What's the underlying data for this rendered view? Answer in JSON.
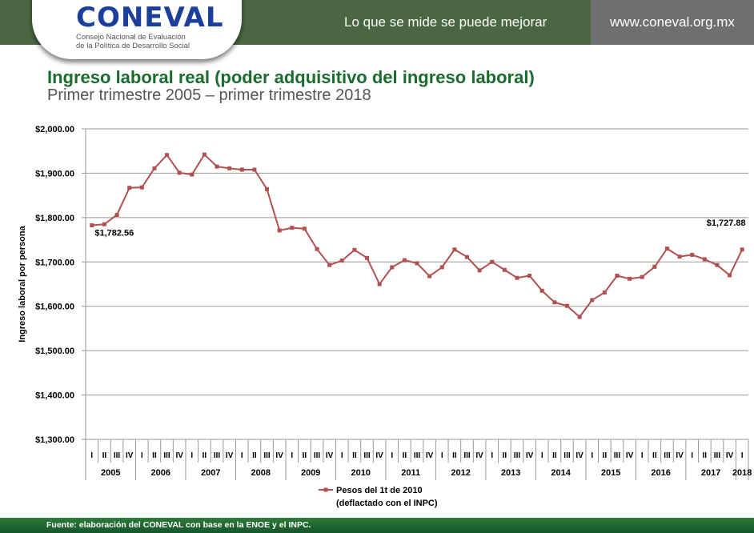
{
  "header": {
    "logo_text": "CONEVAL",
    "logo_subtitle_1": "Consejo Nacional de Evaluación",
    "logo_subtitle_2": "de la Política de Desarrollo Social",
    "slogan": "Lo que se mide se puede mejorar",
    "url": "www.coneval.org.mx",
    "band_color": "#4a6741"
  },
  "title": "Ingreso laboral real (poder adquisitivo del ingreso laboral)",
  "subtitle": "Primer trimestre 2005 – primer trimestre 2018",
  "footer": "Fuente: elaboración del CONEVAL con base en la ENOE y el INPC.",
  "chart_data": {
    "type": "line",
    "ylabel": "Ingreso laboral por persona",
    "ylim": [
      1300,
      2000
    ],
    "yticks": [
      "$1,300.00",
      "$1,400.00",
      "$1,500.00",
      "$1,600.00",
      "$1,700.00",
      "$1,800.00",
      "$1,900.00",
      "$2,000.00"
    ],
    "grid": true,
    "legend_position": "bottom",
    "years": [
      "2005",
      "2006",
      "2007",
      "2008",
      "2009",
      "2010",
      "2011",
      "2012",
      "2013",
      "2014",
      "2015",
      "2016",
      "2017",
      "2018"
    ],
    "quarters": [
      "I",
      "II",
      "III",
      "IV"
    ],
    "series": [
      {
        "name": "Pesos del 1t de 2010",
        "name_line2": "(deflactado con el INPC)",
        "color": "#b05050",
        "values": [
          1782.56,
          1785,
          1806,
          1867,
          1868,
          1911,
          1941,
          1901,
          1897,
          1942,
          1915,
          1911,
          1908,
          1908,
          1864,
          1771,
          1777,
          1775,
          1729,
          1693,
          1703,
          1727,
          1709,
          1650,
          1688,
          1704,
          1697,
          1668,
          1688,
          1728,
          1711,
          1681,
          1700,
          1682,
          1664,
          1669,
          1635,
          1609,
          1601,
          1576,
          1614,
          1631,
          1669,
          1662,
          1666,
          1689,
          1730,
          1712,
          1716,
          1706,
          1693,
          1670,
          1727.88
        ]
      }
    ],
    "annotations": [
      {
        "index": 0,
        "label": "$1,782.56"
      },
      {
        "index": 52,
        "label": "$1,727.88"
      }
    ]
  }
}
